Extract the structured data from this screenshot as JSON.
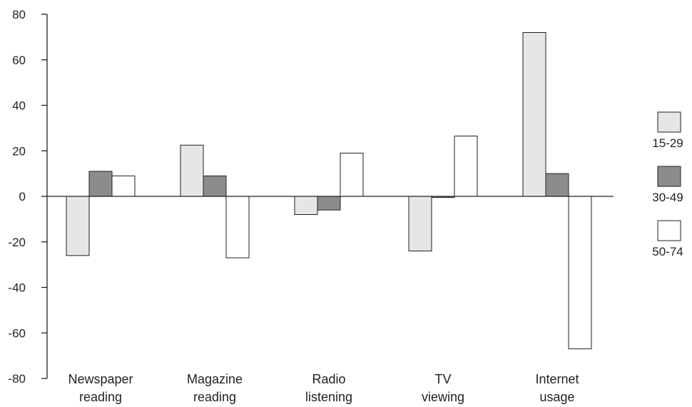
{
  "chart_data": {
    "type": "bar",
    "categories": [
      [
        "Newspaper",
        "reading"
      ],
      [
        "Magazine",
        "reading"
      ],
      [
        "Radio",
        "listening"
      ],
      [
        "TV",
        "viewing"
      ],
      [
        "Internet",
        "usage"
      ]
    ],
    "series": [
      {
        "name": "15-29",
        "color": "#e6e6e6",
        "values": [
          -26,
          22.5,
          -8,
          -24,
          72
        ]
      },
      {
        "name": "30-49",
        "color": "#8c8c8c",
        "values": [
          11,
          9,
          -6,
          -0.5,
          10
        ]
      },
      {
        "name": "50-74",
        "color": "#ffffff",
        "values": [
          9,
          -27,
          19,
          26.5,
          -67
        ]
      }
    ],
    "yticks": [
      80,
      60,
      40,
      20,
      0,
      -20,
      -40,
      -60,
      -80
    ],
    "ylim": [
      -80,
      80
    ],
    "grid": false,
    "legend": "right",
    "title": "",
    "xlabel": "",
    "ylabel": ""
  }
}
